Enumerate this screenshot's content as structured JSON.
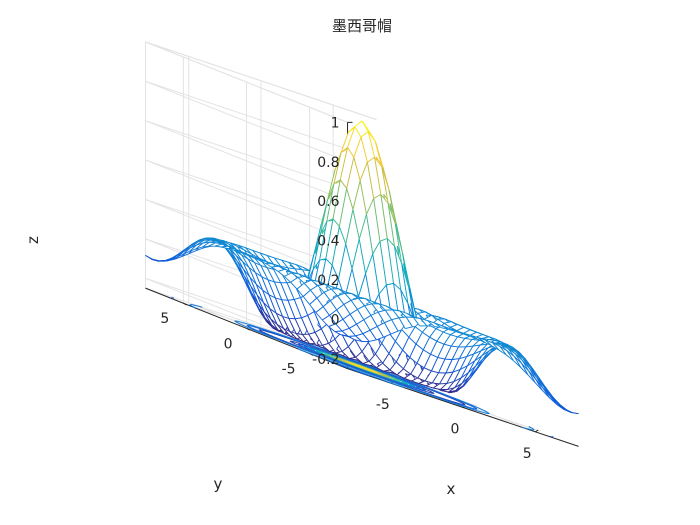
{
  "chart_data": {
    "type": "surface-mesh",
    "title": "墨西哥帽",
    "function": "z = sin(r) / r, r = sqrt(x^2 + y^2)",
    "xlabel": "x",
    "ylabel": "y",
    "zlabel": "z",
    "xlim": [
      -8,
      8
    ],
    "ylim": [
      -8,
      8
    ],
    "zlim": [
      -0.25,
      1
    ],
    "xticks": [
      "-5",
      "0",
      "5"
    ],
    "yticks": [
      "-5",
      "0",
      "5"
    ],
    "zticks": [
      "-0.2",
      "0",
      "0.2",
      "0.4",
      "0.6",
      "0.8",
      "1"
    ],
    "grid_range": [
      -8,
      8
    ],
    "grid_points": 33,
    "z_max": 1,
    "z_min": -0.217,
    "contour_levels": [
      -0.15,
      -0.05,
      0.05,
      0.15,
      0.3,
      0.5,
      0.7,
      0.9
    ],
    "view": {
      "azimuth": -37.5,
      "elevation": 30
    },
    "colormap": "parula",
    "grid": true,
    "box": false
  }
}
